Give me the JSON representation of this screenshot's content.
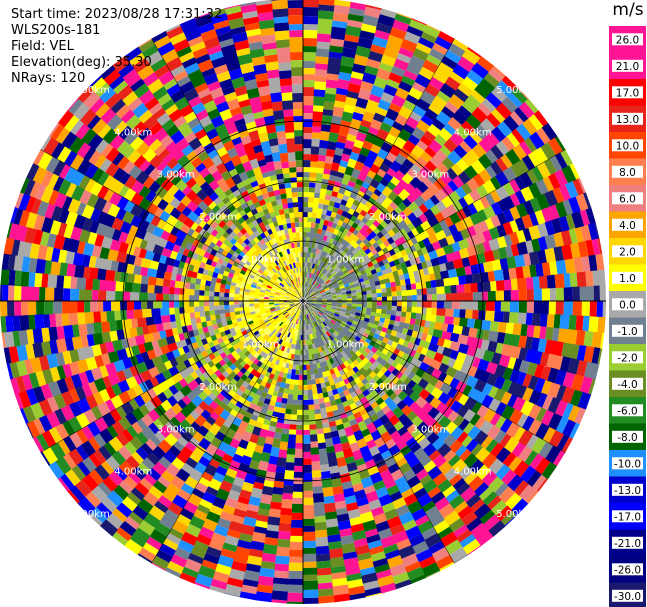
{
  "info": {
    "start_time": "Start time: 2023/08/28 17:31:32",
    "instrument": "WLS200s-181",
    "field": "Field: VEL",
    "elevation": "Elevation(deg): 35.30",
    "nrays": "NRays: 120"
  },
  "colorbar": {
    "unit": "m/s",
    "ticks": [
      "26.0",
      "21.0",
      "17.0",
      "13.0",
      "10.0",
      "8.0",
      "6.0",
      "4.0",
      "2.0",
      "1.0",
      "0.0",
      "-1.0",
      "-2.0",
      "-4.0",
      "-6.0",
      "-8.0",
      "-10.0",
      "-13.0",
      "-17.0",
      "-21.0",
      "-26.0",
      "-30.0"
    ],
    "colors": [
      "#ff1493",
      "#ff1493",
      "#ff0000",
      "#e8231a",
      "#ff4500",
      "#ff7f50",
      "#f08080",
      "#ffa500",
      "#ffd700",
      "#ffff00",
      "#a9a9a9",
      "#708090",
      "#9acd32",
      "#6b8e23",
      "#228b22",
      "#006400",
      "#1e90ff",
      "#0000cd",
      "#0000ff",
      "#00008b",
      "#000080",
      "#191970"
    ]
  },
  "chart_data": {
    "type": "heatmap",
    "projection": "polar-ppi",
    "nrays": 120,
    "range_rings_km": [
      "1.00km",
      "2.00km",
      "3.00km",
      "4.00km",
      "5.00km"
    ],
    "rings_visible_km": [
      1,
      2,
      3
    ],
    "max_range_km": 5.0,
    "near_field": {
      "west_sector": "yellow ~1.0 to 2.0 m/s",
      "east_sector": "grey/olive ~0.0 to -2.0 m/s",
      "extent_km": 2.0
    },
    "far_field": "noisy, full colour range -30.0 to 26.0 m/s"
  }
}
